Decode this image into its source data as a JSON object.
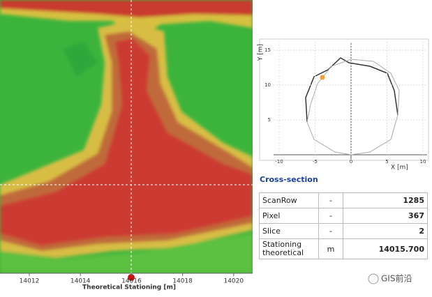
{
  "stationing_axis": {
    "title": "Theoretical Stationing [m]",
    "ticks": [
      14012,
      14014,
      14016,
      14018,
      14020
    ]
  },
  "cross_section_plot": {
    "x_label": "X [m]",
    "y_label": "Y [m]",
    "xticks": [
      -10,
      -5,
      0,
      5,
      10
    ],
    "yticks": [
      5,
      10,
      15
    ]
  },
  "section_title": "Cross-section",
  "table": {
    "rows": [
      [
        "ScanRow",
        "-",
        "1285"
      ],
      [
        "Pixel",
        "-",
        "367"
      ],
      [
        "Slice",
        "-",
        "2"
      ],
      [
        "Stationing theoretical",
        "m",
        "14015.700"
      ]
    ]
  },
  "watermark": "GIS前沿"
}
